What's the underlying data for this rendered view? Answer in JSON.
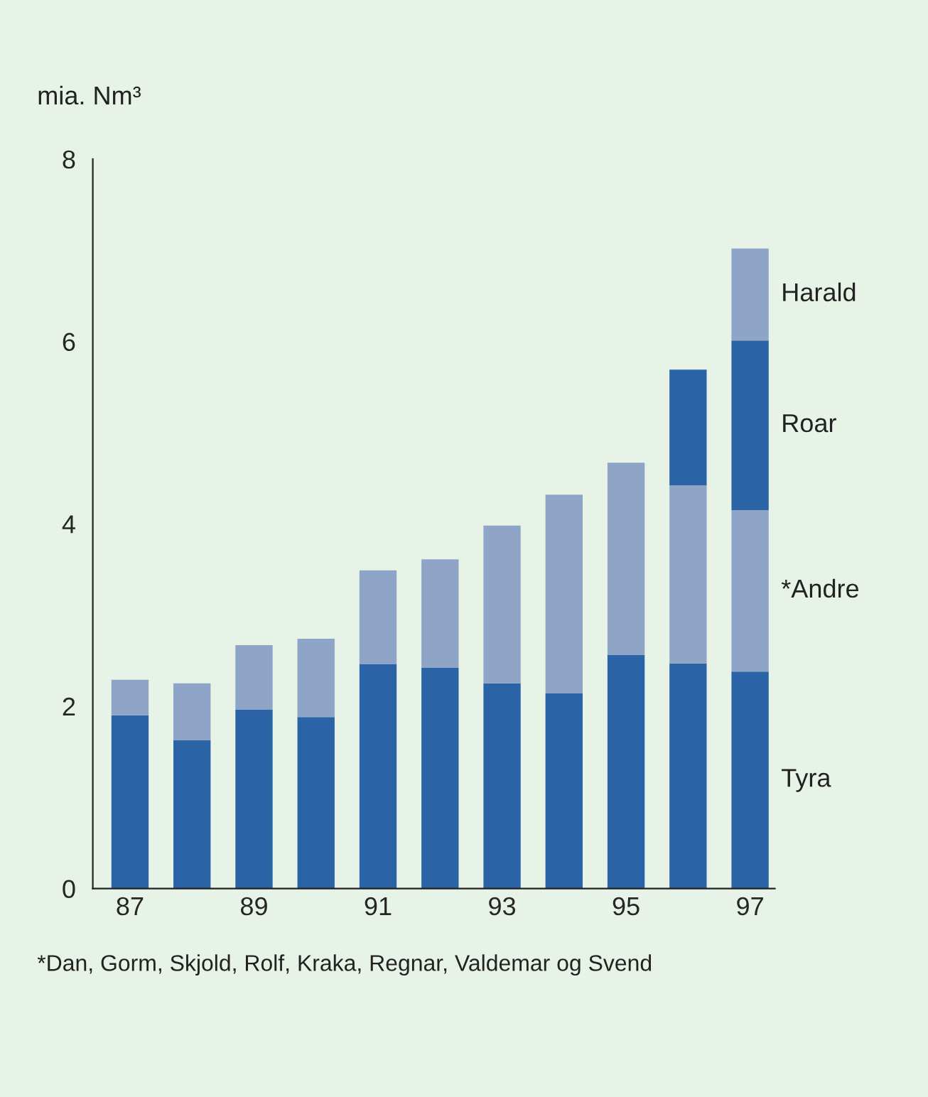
{
  "chart_data": {
    "type": "bar",
    "stacked": true,
    "ylabel": "mia. Nm³",
    "categories": [
      "87",
      null,
      "89",
      null,
      "91",
      null,
      "93",
      null,
      "95",
      null,
      "97"
    ],
    "series": [
      {
        "name": "Tyra",
        "color": "#2a63a6",
        "values": [
          1.9,
          1.63,
          1.96,
          1.88,
          2.46,
          2.42,
          2.25,
          2.14,
          2.56,
          2.47,
          2.38
        ]
      },
      {
        "name": "*Andre",
        "color": "#8fa5c7",
        "values": [
          0.39,
          0.62,
          0.71,
          0.86,
          1.03,
          1.19,
          1.73,
          2.18,
          2.11,
          1.95,
          1.77
        ]
      },
      {
        "name": "Roar",
        "color": "#2a63a6",
        "values": [
          0,
          0,
          0,
          0,
          0,
          0,
          0,
          0,
          0,
          1.27,
          1.86
        ]
      },
      {
        "name": "Harald",
        "color": "#8fa5c7",
        "values": [
          0,
          0,
          0,
          0,
          0,
          0,
          0,
          0,
          0,
          0,
          1.01
        ]
      }
    ],
    "ylim": [
      0,
      8
    ],
    "yticks": [
      0,
      2,
      4,
      6,
      8
    ],
    "grid": false,
    "legend": false,
    "annotations": [
      "*Dan, Gorm, Skjold, Rolf, Kraka, Regnar, Valdemar og Svend"
    ]
  }
}
